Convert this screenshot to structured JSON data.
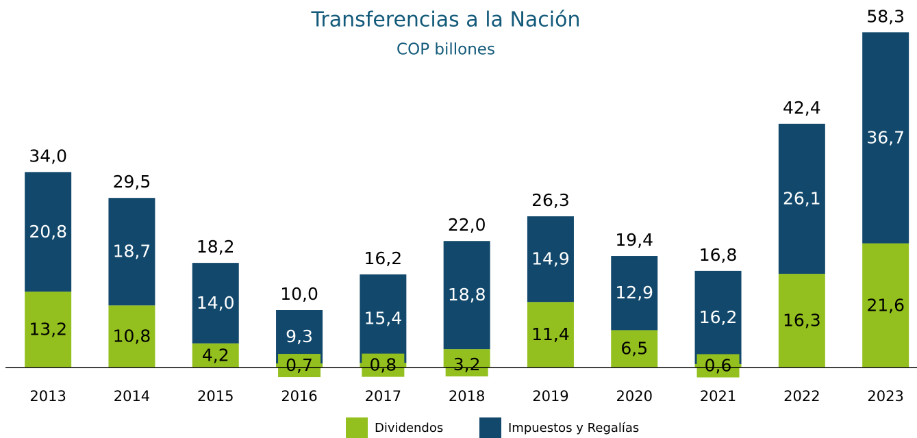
{
  "chart_data": {
    "type": "stacked_bar",
    "title": "Transferencias a la Nación",
    "subtitle": "COP billones",
    "categories": [
      "2013",
      "2014",
      "2015",
      "2016",
      "2017",
      "2018",
      "2019",
      "2020",
      "2021",
      "2022",
      "2023"
    ],
    "series": [
      {
        "name": "Dividendos",
        "color": "#93c01f",
        "values": [
          13.2,
          10.8,
          4.2,
          0.7,
          0.8,
          3.2,
          11.4,
          6.5,
          0.6,
          16.3,
          21.6
        ],
        "value_labels": [
          "13,2",
          "10,8",
          "4,2",
          "0,7",
          "0,8",
          "3,2",
          "11,4",
          "6,5",
          "0,6",
          "16,3",
          "21,6"
        ]
      },
      {
        "name": "Impuestos y Regalías",
        "color": "#12486b",
        "values": [
          20.8,
          18.7,
          14.0,
          9.3,
          15.4,
          18.8,
          14.9,
          12.9,
          16.2,
          26.1,
          36.7
        ],
        "value_labels": [
          "20,8",
          "18,7",
          "14,0",
          "9,3",
          "15,4",
          "18,8",
          "14,9",
          "12,9",
          "16,2",
          "26,1",
          "36,7"
        ]
      }
    ],
    "totals": [
      34.0,
      29.5,
      18.2,
      10.0,
      16.2,
      22.0,
      26.3,
      19.4,
      16.8,
      42.4,
      58.3
    ],
    "total_labels": [
      "34,0",
      "29,5",
      "18,2",
      "10,0",
      "16,2",
      "22,0",
      "26,3",
      "19,4",
      "16,8",
      "42,4",
      "58,3"
    ],
    "ylim": [
      0,
      60
    ],
    "legend": "bottom"
  }
}
